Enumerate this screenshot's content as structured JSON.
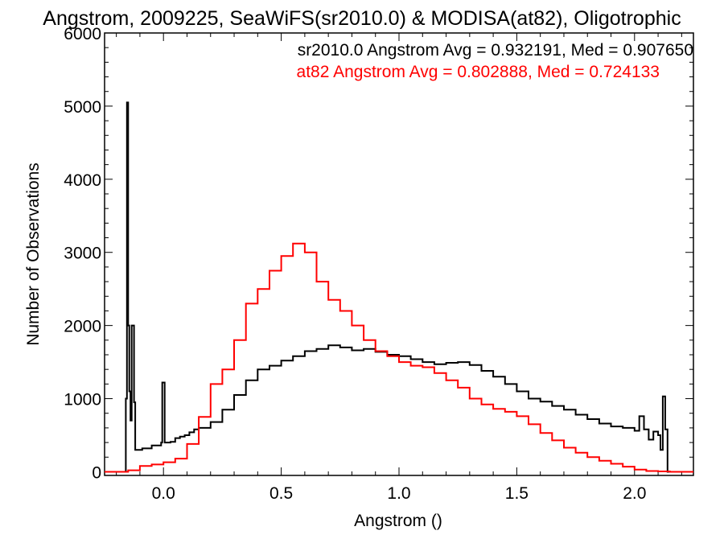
{
  "chart_data": {
    "type": "line",
    "title": "Angstrom, 2009225, SeaWiFS(sr2010.0) & MODISA(at82), Oligotrophic",
    "xlabel": "Angstrom ()",
    "ylabel": "Number of Observations",
    "xlim": [
      -0.25,
      2.25
    ],
    "ylim": [
      -50,
      6000
    ],
    "x_ticks": [
      0.0,
      0.5,
      1.0,
      1.5,
      2.0
    ],
    "x_tick_labels": [
      "0.0",
      "0.5",
      "1.0",
      "1.5",
      "2.0"
    ],
    "y_ticks": [
      0,
      1000,
      2000,
      3000,
      4000,
      5000,
      6000
    ],
    "y_tick_labels": [
      "0",
      "1000",
      "2000",
      "3000",
      "4000",
      "5000",
      "6000"
    ],
    "grid": false,
    "legend_position": "top-right",
    "annotations": [
      {
        "text": "sr2010.0 Angstrom Avg = 0.932191, Med = 0.907650",
        "color": "#000000"
      },
      {
        "text": "at82 Angstrom Avg = 0.802888, Med = 0.724133",
        "color": "#ff0000"
      }
    ],
    "series": [
      {
        "color": "#000000",
        "x": [
          -0.25,
          -0.17,
          -0.16,
          -0.155,
          -0.15,
          -0.145,
          -0.14,
          -0.135,
          -0.13,
          -0.125,
          -0.12,
          -0.11,
          -0.09,
          -0.07,
          -0.05,
          -0.03,
          -0.01,
          -0.005,
          0.0,
          0.005,
          0.01,
          0.03,
          0.05,
          0.07,
          0.09,
          0.11,
          0.13,
          0.15,
          0.2,
          0.25,
          0.3,
          0.35,
          0.4,
          0.45,
          0.5,
          0.55,
          0.6,
          0.65,
          0.7,
          0.75,
          0.8,
          0.85,
          0.9,
          0.95,
          1.0,
          1.05,
          1.1,
          1.15,
          1.2,
          1.25,
          1.3,
          1.35,
          1.4,
          1.45,
          1.5,
          1.55,
          1.6,
          1.65,
          1.7,
          1.75,
          1.8,
          1.85,
          1.9,
          1.95,
          2.0,
          2.02,
          2.04,
          2.06,
          2.08,
          2.1,
          2.11,
          2.12,
          2.13,
          2.14,
          2.145,
          2.15,
          2.25
        ],
        "y": [
          0,
          0,
          1000,
          5050,
          2000,
          1100,
          700,
          2000,
          2000,
          950,
          300,
          300,
          320,
          320,
          360,
          360,
          400,
          1220,
          1220,
          400,
          400,
          410,
          460,
          480,
          500,
          540,
          580,
          600,
          680,
          850,
          1050,
          1250,
          1400,
          1450,
          1520,
          1580,
          1650,
          1680,
          1730,
          1700,
          1660,
          1680,
          1640,
          1600,
          1580,
          1540,
          1500,
          1470,
          1490,
          1500,
          1460,
          1380,
          1300,
          1200,
          1100,
          1000,
          960,
          900,
          850,
          780,
          720,
          660,
          620,
          600,
          560,
          760,
          580,
          440,
          550,
          500,
          300,
          1030,
          580,
          0,
          0,
          0,
          0
        ]
      },
      {
        "color": "#ff0000",
        "x": [
          -0.25,
          -0.17,
          -0.15,
          -0.1,
          -0.05,
          0.0,
          0.05,
          0.1,
          0.15,
          0.2,
          0.25,
          0.3,
          0.35,
          0.4,
          0.45,
          0.5,
          0.55,
          0.6,
          0.65,
          0.7,
          0.75,
          0.8,
          0.85,
          0.9,
          0.95,
          1.0,
          1.05,
          1.1,
          1.15,
          1.2,
          1.25,
          1.3,
          1.35,
          1.4,
          1.45,
          1.5,
          1.55,
          1.6,
          1.65,
          1.7,
          1.75,
          1.8,
          1.85,
          1.9,
          1.95,
          2.0,
          2.05,
          2.1,
          2.15,
          2.2,
          2.25
        ],
        "y": [
          0,
          0,
          20,
          80,
          100,
          130,
          180,
          380,
          750,
          1200,
          1400,
          1800,
          2300,
          2500,
          2750,
          2950,
          3120,
          3000,
          2600,
          2350,
          2200,
          2000,
          1800,
          1650,
          1580,
          1500,
          1450,
          1430,
          1350,
          1250,
          1150,
          1000,
          920,
          860,
          820,
          760,
          650,
          530,
          430,
          330,
          260,
          200,
          150,
          110,
          70,
          30,
          10,
          5,
          0,
          0,
          0
        ]
      }
    ]
  }
}
